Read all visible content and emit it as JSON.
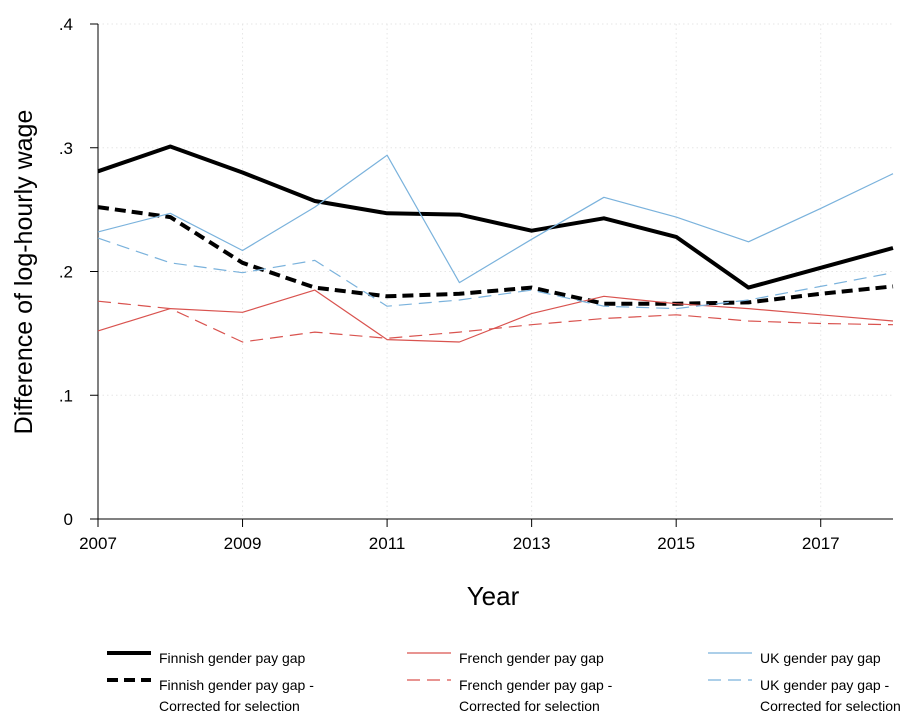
{
  "chart_data": {
    "type": "line",
    "title": "",
    "xlabel": "Year",
    "ylabel": "Difference of log-hourly wage",
    "xlim": [
      2007,
      2018
    ],
    "ylim": [
      0,
      0.4
    ],
    "x_ticks": [
      "2007",
      "2009",
      "2011",
      "2013",
      "2015",
      "2017"
    ],
    "y_ticks": [
      "0",
      ".1",
      ".2",
      ".3",
      ".4"
    ],
    "grid": true,
    "legend_position": "bottom",
    "x": [
      2007,
      2008,
      2009,
      2010,
      2011,
      2012,
      2013,
      2014,
      2015,
      2016,
      2017,
      2018
    ],
    "series": [
      {
        "name": "Finnish gender pay gap",
        "color": "#000000",
        "style": "solid",
        "width": 4,
        "values": [
          0.281,
          0.301,
          0.28,
          0.257,
          0.247,
          0.246,
          0.233,
          0.243,
          0.228,
          0.187,
          0.203,
          0.219
        ]
      },
      {
        "name": "Finnish gender pay gap - Corrected for selection",
        "color": "#000000",
        "style": "dashed",
        "width": 4,
        "values": [
          0.252,
          0.244,
          0.207,
          0.187,
          0.18,
          0.182,
          0.187,
          0.174,
          0.174,
          0.175,
          0.182,
          0.188
        ]
      },
      {
        "name": "French gender pay gap",
        "color": "#d9534f",
        "style": "solid",
        "width": 1.2,
        "values": [
          0.152,
          0.17,
          0.167,
          0.185,
          0.145,
          0.143,
          0.166,
          0.18,
          0.174,
          0.17,
          0.165,
          0.16
        ]
      },
      {
        "name": "French gender pay gap - Corrected for selection",
        "color": "#d9534f",
        "style": "dashed",
        "width": 1.2,
        "values": [
          0.176,
          0.17,
          0.143,
          0.151,
          0.146,
          0.151,
          0.157,
          0.162,
          0.165,
          0.16,
          0.158,
          0.157
        ]
      },
      {
        "name": "UK gender pay gap",
        "color": "#7ab2dc",
        "style": "solid",
        "width": 1.2,
        "values": [
          0.232,
          0.247,
          0.217,
          0.252,
          0.294,
          0.191,
          0.226,
          0.26,
          0.244,
          0.224,
          0.251,
          0.279
        ]
      },
      {
        "name": "UK gender pay gap - Corrected for selection",
        "color": "#7ab2dc",
        "style": "dashed",
        "width": 1.2,
        "values": [
          0.227,
          0.207,
          0.199,
          0.209,
          0.172,
          0.177,
          0.185,
          0.172,
          0.17,
          0.177,
          0.188,
          0.199
        ]
      }
    ]
  },
  "legend": {
    "items": [
      {
        "label": "Finnish gender pay gap",
        "color": "#000000",
        "style": "solid",
        "width": 4
      },
      {
        "label": "Finnish gender pay gap -\nCorrected for selection",
        "color": "#000000",
        "style": "dashed",
        "width": 4
      },
      {
        "label": "French gender pay gap",
        "color": "#d9534f",
        "style": "solid",
        "width": 1.2
      },
      {
        "label": "French gender pay gap -\nCorrected for selection",
        "color": "#d9534f",
        "style": "dashed",
        "width": 1.2
      },
      {
        "label": "UK gender pay gap",
        "color": "#7ab2dc",
        "style": "solid",
        "width": 1.2
      },
      {
        "label": "UK gender pay gap -\nCorrected for selection",
        "color": "#7ab2dc",
        "style": "dashed",
        "width": 1.2
      }
    ]
  }
}
